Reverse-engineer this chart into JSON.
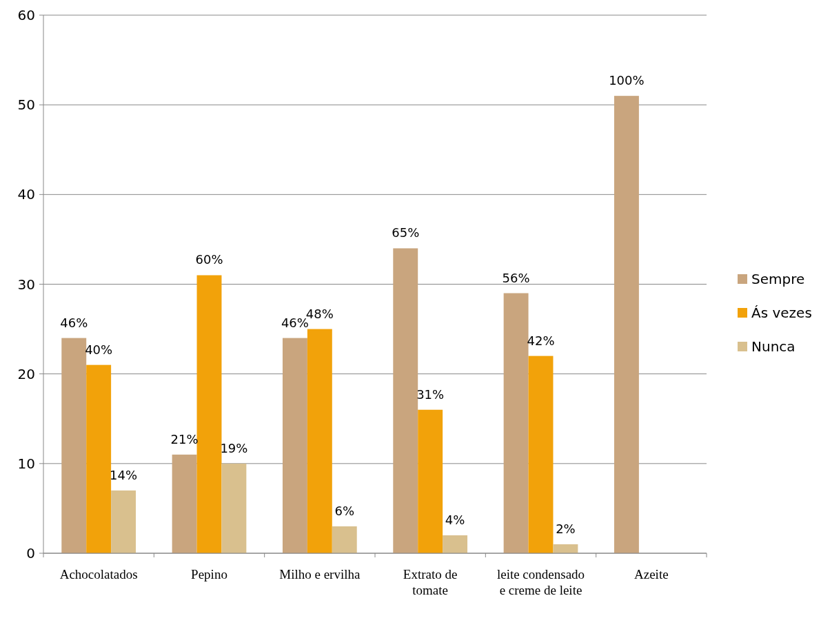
{
  "chart_data": {
    "type": "bar",
    "categories": [
      "Achocolatados",
      "Pepino",
      "Milho e ervilha",
      "Extrato de tomate",
      "leite condensado e creme de leite",
      "Azeite"
    ],
    "series": [
      {
        "name": "Sempre",
        "color": "#c9a57e",
        "values": [
          24,
          11,
          24,
          34,
          29,
          51
        ]
      },
      {
        "name": "Ás vezes",
        "color": "#f2a20a",
        "values": [
          21,
          31,
          25,
          16,
          22,
          null
        ]
      },
      {
        "name": "Nunca",
        "color": "#d9c08e",
        "values": [
          7,
          10,
          3,
          2,
          1,
          null
        ]
      }
    ],
    "annotations": [
      "46%",
      "40%",
      "14%",
      "21%",
      "60%",
      "19%",
      "46%",
      "48%",
      "6%",
      "65%",
      "31%",
      "4%",
      "56%",
      "42%",
      "2%",
      "100%"
    ],
    "ylim": [
      0,
      60
    ],
    "yticks": [
      0,
      10,
      20,
      30,
      40,
      50,
      60
    ],
    "grid": "y",
    "legend": "right"
  }
}
